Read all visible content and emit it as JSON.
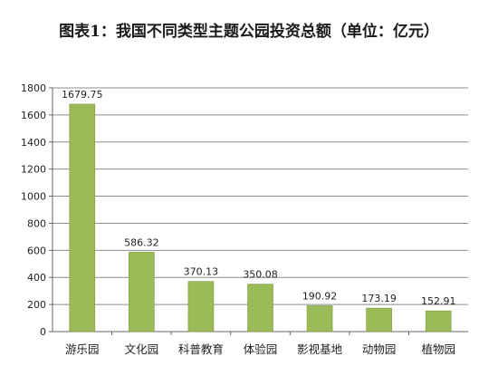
{
  "chart_data": {
    "type": "bar",
    "title": "图表1：我国不同类型主题公园投资总额（单位：亿元）",
    "categories": [
      "游乐园",
      "文化园",
      "科普教育",
      "体验园",
      "影视基地",
      "动物园",
      "植物园"
    ],
    "values": [
      1679.75,
      586.32,
      370.13,
      350.08,
      190.92,
      173.19,
      152.91
    ],
    "data_labels": [
      "1679.75",
      "586.32",
      "370.13",
      "350.08",
      "190.92",
      "173.19",
      "152.91"
    ],
    "ylim": [
      0,
      1800
    ],
    "yticks": [
      0,
      200,
      400,
      600,
      800,
      1000,
      1200,
      1400,
      1600,
      1800
    ],
    "ytick_labels": [
      "0",
      "200",
      "400",
      "600",
      "800",
      "1000",
      "1200",
      "1400",
      "1600",
      "1800"
    ],
    "grid": true,
    "legend": "none",
    "bar_color": "#9bbb59",
    "bar_edge_color": "#7a9a3c",
    "grid_color": "#8c8c8c"
  }
}
